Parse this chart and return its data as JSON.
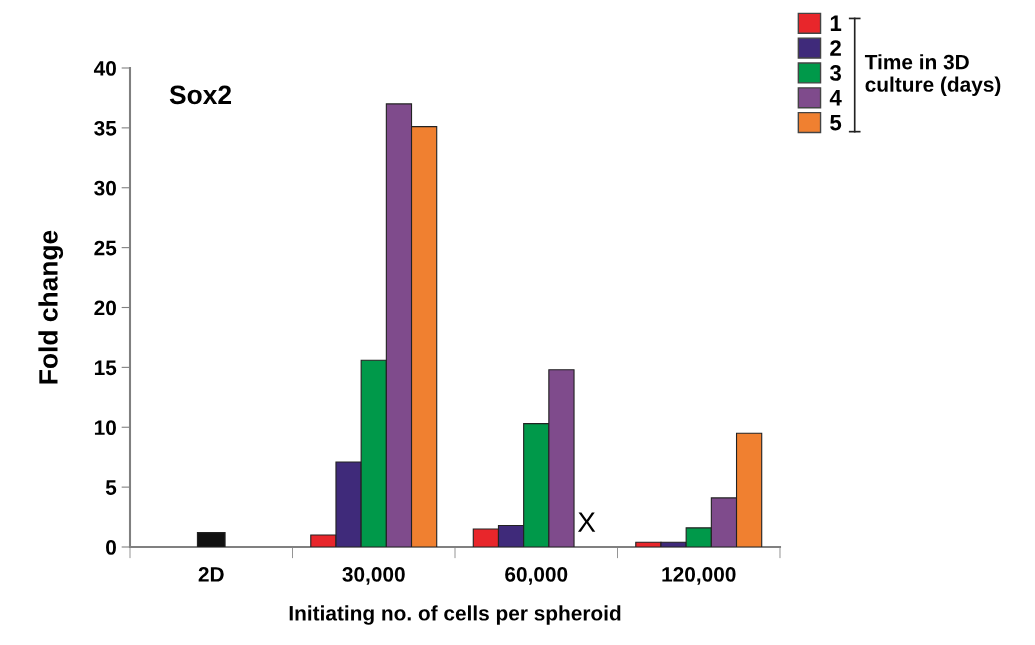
{
  "chart_data": {
    "type": "bar",
    "title": "Sox2",
    "xlabel": "Initiating no. of cells per spheroid",
    "ylabel": "Fold change",
    "legend_title": "Time in 3D\nculture (days)",
    "categories": [
      "2D",
      "30,000",
      "60,000",
      "120,000"
    ],
    "series": [
      {
        "color": "#111111",
        "values": [
          1.2,
          null,
          null,
          null
        ]
      },
      {
        "name": "1",
        "color": "#e8262b",
        "values": [
          null,
          1.0,
          1.5,
          0.4
        ]
      },
      {
        "name": "2",
        "color": "#3f2a7a",
        "values": [
          null,
          7.1,
          1.8,
          0.4
        ]
      },
      {
        "name": "3",
        "color": "#00994a",
        "values": [
          null,
          15.6,
          10.3,
          1.6
        ]
      },
      {
        "name": "4",
        "color": "#7f4b8c",
        "values": [
          null,
          37.0,
          14.8,
          4.1
        ]
      },
      {
        "name": "5",
        "color": "#f08030",
        "values": [
          null,
          35.1,
          null,
          9.5
        ]
      }
    ],
    "annotations": [
      "X"
    ],
    "ylim": [
      0,
      40
    ],
    "yticks": [
      0,
      5,
      10,
      15,
      20,
      25,
      30,
      35,
      40
    ],
    "grid": false,
    "legend": "top right"
  }
}
